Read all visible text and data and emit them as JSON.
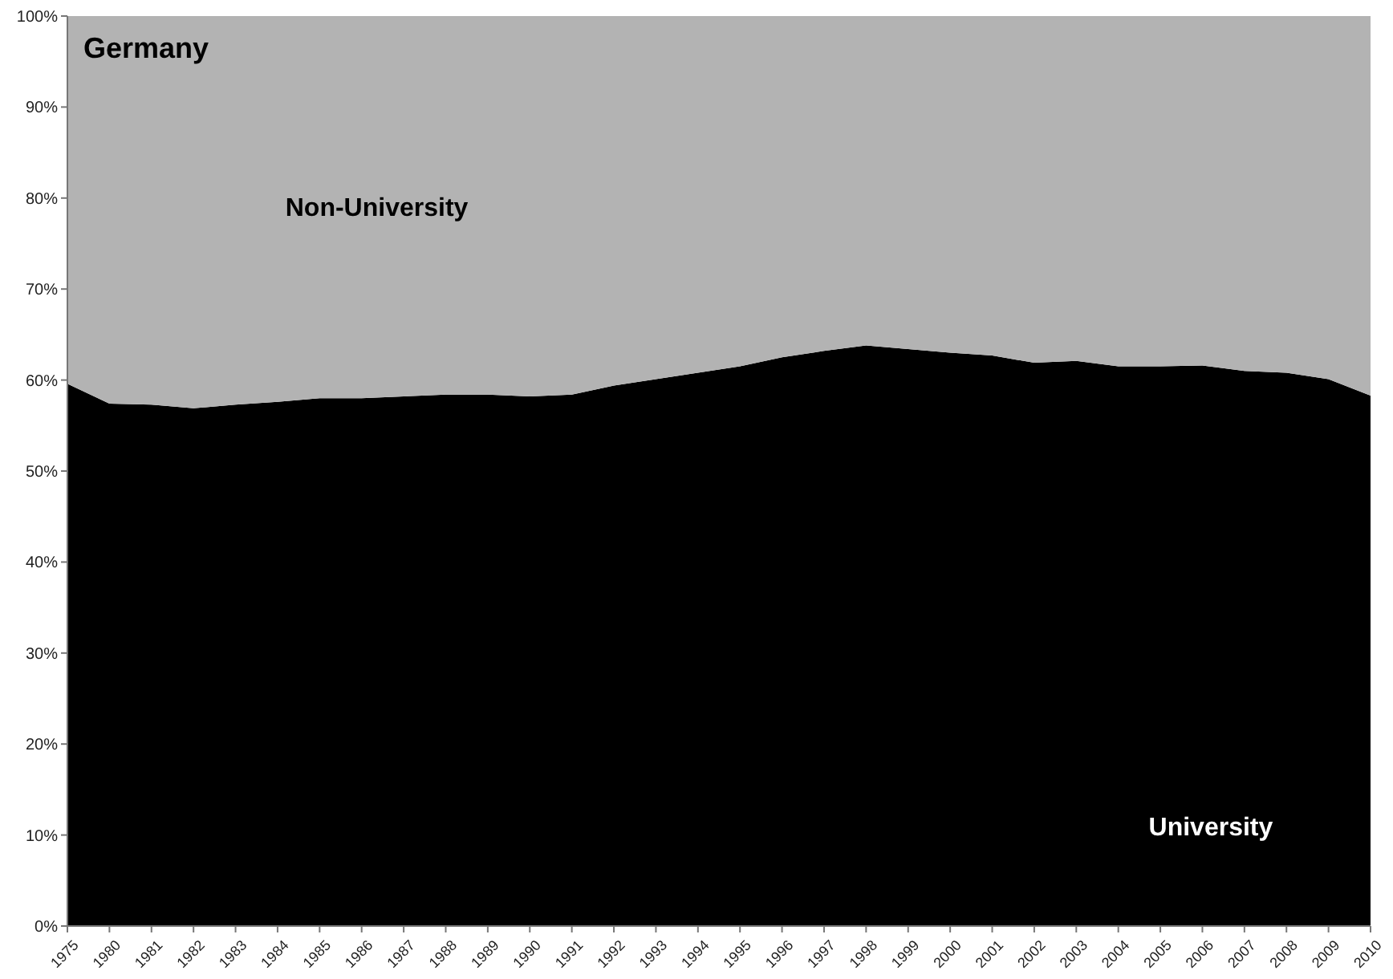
{
  "chart_data": {
    "type": "area",
    "title": "Germany",
    "stacked": true,
    "grid": false,
    "categories": [
      "1975",
      "1980",
      "1981",
      "1982",
      "1983",
      "1984",
      "1985",
      "1986",
      "1987",
      "1988",
      "1989",
      "1990",
      "1991",
      "1992",
      "1993",
      "1994",
      "1995",
      "1996",
      "1997",
      "1998",
      "1999",
      "2000",
      "2001",
      "2002",
      "2003",
      "2004",
      "2005",
      "2006",
      "2007",
      "2008",
      "2009",
      "2010"
    ],
    "ylim": [
      0,
      100
    ],
    "yticks": [
      {
        "value": 0,
        "label": "0%"
      },
      {
        "value": 10,
        "label": "10%"
      },
      {
        "value": 20,
        "label": "20%"
      },
      {
        "value": 30,
        "label": "30%"
      },
      {
        "value": 40,
        "label": "40%"
      },
      {
        "value": 50,
        "label": "50%"
      },
      {
        "value": 60,
        "label": "60%"
      },
      {
        "value": 70,
        "label": "70%"
      },
      {
        "value": 80,
        "label": "80%"
      },
      {
        "value": 90,
        "label": "90%"
      },
      {
        "value": 100,
        "label": "100%"
      }
    ],
    "series": [
      {
        "name": "University",
        "color": "#000000",
        "values": [
          59.6,
          57.4,
          57.3,
          56.9,
          57.3,
          57.6,
          58.0,
          58.0,
          58.2,
          58.4,
          58.4,
          58.2,
          58.4,
          59.4,
          60.1,
          60.8,
          61.5,
          62.5,
          63.2,
          63.8,
          63.4,
          63.0,
          62.7,
          61.9,
          62.1,
          61.5,
          61.5,
          61.6,
          61.0,
          60.8,
          60.1,
          58.3
        ]
      },
      {
        "name": "Non-University",
        "color": "#b3b3b3",
        "values": [
          40.4,
          42.6,
          42.7,
          43.1,
          42.7,
          42.4,
          42.0,
          42.0,
          41.8,
          41.6,
          41.6,
          41.8,
          41.6,
          40.6,
          39.9,
          39.2,
          38.5,
          37.5,
          36.8,
          36.2,
          36.6,
          37.0,
          37.3,
          38.1,
          37.9,
          38.5,
          38.5,
          38.4,
          39.0,
          39.2,
          39.9,
          41.7
        ]
      }
    ]
  }
}
